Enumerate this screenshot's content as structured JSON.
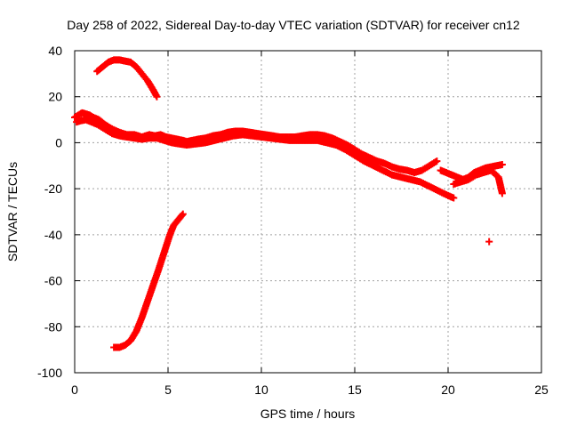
{
  "chart_data": {
    "type": "scatter",
    "title": "Day 258 of 2022, Sidereal Day-to-day VTEC variation (SDTVAR) for receiver cn12",
    "xlabel": "GPS time / hours",
    "ylabel": "SDTVAR / TECUs",
    "xlim": [
      0,
      25
    ],
    "ylim": [
      -100,
      40
    ],
    "xticks": [
      0,
      5,
      10,
      15,
      20,
      25
    ],
    "yticks": [
      -100,
      -80,
      -60,
      -40,
      -20,
      0,
      20,
      40
    ],
    "grid": true,
    "legend": "none",
    "marker": "plus",
    "color": "#ff0000",
    "series": [
      {
        "name": "main-band-upper",
        "x": [
          0.0,
          0.2,
          0.4,
          0.6,
          0.8,
          1.0,
          1.3,
          1.6,
          2.0,
          2.4,
          2.8,
          3.2,
          3.6,
          4.0,
          4.3,
          4.6,
          4.9,
          5.2,
          5.5,
          5.8,
          6.0,
          6.3,
          6.6,
          7.0,
          7.4,
          7.8,
          8.2,
          8.6,
          9.0,
          9.4,
          9.8,
          10.2,
          10.6,
          11.0,
          11.4,
          11.8,
          12.2,
          12.6,
          13.0,
          13.4,
          13.8,
          14.2,
          14.6,
          15.0,
          15.4,
          15.8,
          16.2,
          16.6,
          17.0,
          17.4,
          17.8,
          18.2,
          18.6,
          19.0,
          19.4
        ],
        "y": [
          11,
          12,
          13,
          12.5,
          12,
          11,
          10,
          8,
          6,
          4.5,
          3.5,
          3.5,
          2.5,
          3.5,
          3,
          3.5,
          2.5,
          2,
          1.5,
          1,
          0.5,
          1,
          1.5,
          2,
          3,
          3.5,
          4.5,
          5,
          5,
          4.5,
          4,
          3.5,
          3,
          2.5,
          2.5,
          2.5,
          3,
          3.5,
          3.5,
          3,
          2,
          0.5,
          -1,
          -3,
          -5,
          -6.5,
          -8,
          -9,
          -10.5,
          -11.5,
          -12,
          -13,
          -12,
          -10,
          -8
        ]
      },
      {
        "name": "main-band-lower",
        "x": [
          0.1,
          0.3,
          0.6,
          0.9,
          1.2,
          1.6,
          2.0,
          2.4,
          2.8,
          3.2,
          3.6,
          4.0,
          4.4,
          4.8,
          5.2,
          5.6,
          6.0,
          6.5,
          7.0,
          7.5,
          8.0,
          8.5,
          9.0,
          9.5,
          10.0,
          10.5,
          11.0,
          11.5,
          12.0,
          12.5,
          13.0,
          13.5,
          14.0,
          14.5,
          15.0,
          15.5,
          16.0,
          16.5,
          17.0,
          17.5,
          18.0,
          18.5,
          19.0,
          19.5,
          20.0,
          20.3
        ],
        "y": [
          9,
          9.5,
          10,
          9,
          8,
          6,
          4,
          3,
          2.5,
          2,
          1.5,
          2,
          2,
          1,
          0,
          -0.5,
          -1,
          -0.5,
          0,
          1,
          2,
          3,
          3.5,
          3,
          2.5,
          2,
          1.5,
          1,
          1,
          1,
          1,
          0,
          -1,
          -3,
          -5.5,
          -8,
          -10,
          -12,
          -14,
          -15,
          -16,
          -17,
          -19,
          -21,
          -23,
          -24
        ]
      },
      {
        "name": "upper-arc",
        "x": [
          1.2,
          1.5,
          1.8,
          2.1,
          2.4,
          2.7,
          3.0,
          3.3,
          3.6,
          3.9,
          4.2,
          4.4
        ],
        "y": [
          31,
          33,
          35,
          36,
          36,
          35.5,
          35,
          33,
          30,
          27,
          23,
          20
        ]
      },
      {
        "name": "descending-arc",
        "x": [
          2.1,
          2.4,
          2.7,
          3.0,
          3.3,
          3.6,
          3.9,
          4.2,
          4.5,
          4.7,
          4.9,
          5.1,
          5.3,
          5.5,
          5.7,
          5.8
        ],
        "y": [
          -89,
          -89,
          -88,
          -86,
          -82,
          -76,
          -69,
          -62,
          -55,
          -50,
          -45,
          -40,
          -36,
          -34,
          -32,
          -31
        ]
      },
      {
        "name": "late-tracks",
        "x": [
          19.6,
          19.9,
          20.2,
          20.5,
          20.8,
          21.1,
          21.4,
          21.7,
          22.0,
          22.3,
          22.6,
          22.9,
          20.3,
          20.7,
          21.1,
          21.5,
          21.9,
          22.3,
          22.7,
          22.9
        ],
        "y": [
          -12,
          -13,
          -14,
          -15,
          -16,
          -15,
          -13,
          -12,
          -11,
          -10.5,
          -10,
          -9.5,
          -18,
          -17,
          -16,
          -14,
          -13,
          -12,
          -15,
          -22
        ]
      },
      {
        "name": "outlier",
        "x": [
          22.2
        ],
        "y": [
          -43
        ]
      }
    ]
  }
}
